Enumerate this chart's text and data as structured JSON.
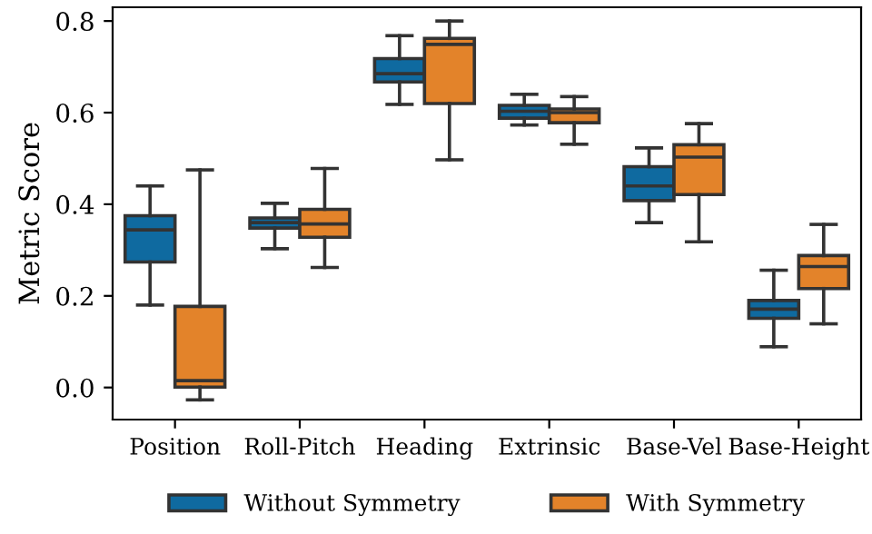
{
  "chart_data": {
    "type": "box",
    "ylabel": "Metric Score",
    "categories": [
      "Position",
      "Roll-Pitch",
      "Heading",
      "Extrinsic",
      "Base-Vel",
      "Base-Height"
    ],
    "ylim": [
      -0.07,
      0.83
    ],
    "yticks": [
      {
        "value": 0,
        "label": "0.0"
      },
      0.2,
      0.4,
      0.6,
      0.8
    ],
    "legend": "bottom",
    "grid": false,
    "series": [
      {
        "name": "Without Symmetry",
        "color": "#0f6aa0",
        "boxes": [
          {
            "low": 0.18,
            "q1": 0.274,
            "median": 0.344,
            "q3": 0.375,
            "high": 0.44
          },
          {
            "low": 0.303,
            "q1": 0.348,
            "median": 0.36,
            "q3": 0.37,
            "high": 0.402
          },
          {
            "low": 0.618,
            "q1": 0.667,
            "median": 0.685,
            "q3": 0.718,
            "high": 0.768
          },
          {
            "low": 0.573,
            "q1": 0.588,
            "median": 0.603,
            "q3": 0.616,
            "high": 0.64
          },
          {
            "low": 0.36,
            "q1": 0.408,
            "median": 0.44,
            "q3": 0.482,
            "high": 0.523
          },
          {
            "low": 0.089,
            "q1": 0.151,
            "median": 0.171,
            "q3": 0.19,
            "high": 0.256
          }
        ]
      },
      {
        "name": "With Symmetry",
        "color": "#e3832a",
        "boxes": [
          {
            "low": -0.027,
            "q1": 0.001,
            "median": 0.015,
            "q3": 0.177,
            "high": 0.475
          },
          {
            "low": 0.262,
            "q1": 0.328,
            "median": 0.357,
            "q3": 0.389,
            "high": 0.478
          },
          {
            "low": 0.497,
            "q1": 0.62,
            "median": 0.749,
            "q3": 0.762,
            "high": 0.8
          },
          {
            "low": 0.531,
            "q1": 0.578,
            "median": 0.6,
            "q3": 0.608,
            "high": 0.635
          },
          {
            "low": 0.318,
            "q1": 0.421,
            "median": 0.503,
            "q3": 0.53,
            "high": 0.576
          },
          {
            "low": 0.139,
            "q1": 0.216,
            "median": 0.264,
            "q3": 0.288,
            "high": 0.356
          }
        ]
      }
    ]
  }
}
